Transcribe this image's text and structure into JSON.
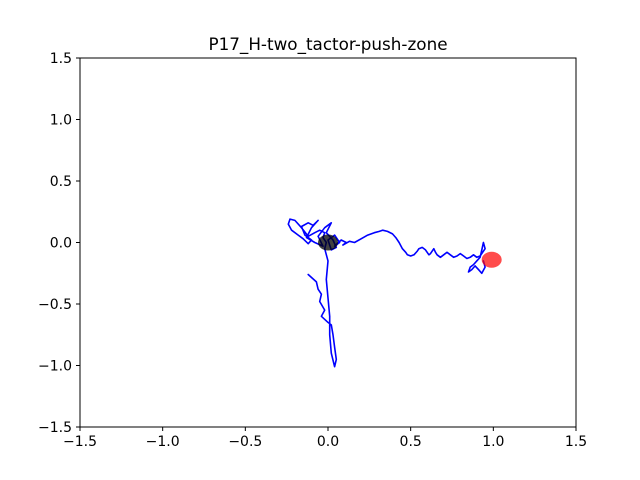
{
  "chart_data": {
    "type": "line",
    "title": "P17_H-two_tactor-push-zone",
    "xlabel": "",
    "ylabel": "",
    "xlim": [
      -1.5,
      1.5
    ],
    "ylim": [
      -1.5,
      1.5
    ],
    "xticks": [
      -1.5,
      -1.0,
      -0.5,
      0.0,
      0.5,
      1.0,
      1.5
    ],
    "xtick_labels": [
      "−1.5",
      "−1.0",
      "−0.5",
      "0.0",
      "0.5",
      "1.0",
      "1.5"
    ],
    "yticks": [
      -1.5,
      -1.0,
      -0.5,
      0.0,
      0.5,
      1.0,
      1.5
    ],
    "ytick_labels": [
      "−1.5",
      "−1.0",
      "−0.5",
      "0.0",
      "0.5",
      "1.0",
      "1.5"
    ],
    "grid": false,
    "series": [
      {
        "color": "#0000ff",
        "x": [
          -0.12,
          -0.07,
          -0.06,
          -0.04,
          -0.05,
          -0.02,
          -0.04,
          0.0,
          0.02,
          0.03,
          0.04,
          0.05,
          0.04,
          0.02,
          0.01,
          0.01,
          0.0,
          -0.01,
          0.0,
          -0.02,
          -0.01,
          -0.03,
          -0.02,
          -0.05,
          -0.08,
          -0.12,
          -0.16,
          -0.2,
          -0.23,
          -0.24,
          -0.22,
          -0.18,
          -0.15,
          -0.12,
          -0.1,
          -0.14,
          -0.16,
          -0.12,
          -0.09,
          -0.06,
          -0.1,
          -0.13,
          -0.08,
          -0.03,
          -0.06,
          -0.02,
          0.02,
          -0.01,
          0.03,
          0.05,
          0.02,
          0.0,
          0.04,
          0.07,
          0.04,
          0.08,
          0.11,
          0.09,
          0.13,
          0.16,
          0.2,
          0.24,
          0.28,
          0.31,
          0.33,
          0.36,
          0.39,
          0.41,
          0.43,
          0.45,
          0.47,
          0.48,
          0.5,
          0.52,
          0.54,
          0.55,
          0.57,
          0.59,
          0.61,
          0.62,
          0.63,
          0.64,
          0.65,
          0.66,
          0.68,
          0.7,
          0.72,
          0.74,
          0.76,
          0.78,
          0.8,
          0.82,
          0.84,
          0.86,
          0.88,
          0.9,
          0.92,
          0.93,
          0.95,
          0.94,
          0.93,
          0.92,
          0.9,
          0.88,
          0.86,
          0.85,
          0.87,
          0.89,
          0.91,
          0.93,
          0.95,
          0.94
        ],
        "y": [
          -0.26,
          -0.32,
          -0.38,
          -0.42,
          -0.48,
          -0.55,
          -0.6,
          -0.65,
          -0.67,
          -0.75,
          -0.85,
          -0.95,
          -1.01,
          -0.9,
          -0.75,
          -0.6,
          -0.45,
          -0.3,
          -0.15,
          -0.05,
          0.0,
          0.04,
          0.08,
          0.1,
          0.08,
          0.05,
          0.12,
          0.18,
          0.19,
          0.15,
          0.1,
          0.06,
          0.03,
          -0.01,
          0.02,
          0.06,
          0.13,
          0.16,
          0.14,
          0.18,
          0.12,
          0.04,
          0.0,
          -0.03,
          0.05,
          0.12,
          0.16,
          0.08,
          0.02,
          -0.04,
          -0.06,
          0.02,
          0.06,
          0.0,
          -0.03,
          0.02,
          0.0,
          -0.02,
          0.01,
          0.0,
          0.03,
          0.06,
          0.08,
          0.09,
          0.1,
          0.09,
          0.07,
          0.04,
          0.0,
          -0.05,
          -0.08,
          -0.1,
          -0.11,
          -0.1,
          -0.07,
          -0.05,
          -0.04,
          -0.06,
          -0.1,
          -0.09,
          -0.07,
          -0.05,
          -0.08,
          -0.1,
          -0.12,
          -0.1,
          -0.08,
          -0.1,
          -0.12,
          -0.11,
          -0.09,
          -0.11,
          -0.13,
          -0.12,
          -0.1,
          -0.12,
          -0.11,
          -0.09,
          -0.05,
          0.0,
          -0.06,
          -0.12,
          -0.15,
          -0.18,
          -0.2,
          -0.24,
          -0.22,
          -0.19,
          -0.22,
          -0.25,
          -0.2,
          -0.15
        ]
      }
    ],
    "markers": [
      {
        "x": 0.0,
        "y": 0.0,
        "color": "#000000",
        "opacity": 0.75
      },
      {
        "x": 0.99,
        "y": -0.14,
        "color": "#ff0000",
        "opacity": 0.7
      }
    ]
  }
}
